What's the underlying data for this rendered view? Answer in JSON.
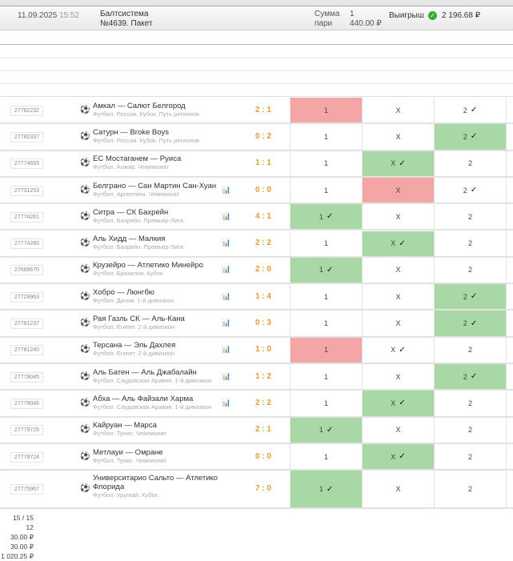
{
  "header": {
    "date": "11.09.2025",
    "time": "15:52",
    "title1": "Балтсистема",
    "title2": "№4639. Пакет",
    "sum_label1": "Сумма",
    "sum_label2": "пари",
    "sum_value1": "1",
    "sum_value2": "440.00 ₽",
    "win_label": "Выигрыш",
    "win_value": "2 196.68 ₽",
    "win_icon": "check-circle-icon"
  },
  "colors": {
    "win": "#a8d8a6",
    "lose": "#f4a6a6",
    "score": "#e0a030"
  },
  "rows": [
    {
      "id": "27782232",
      "teams": "Амкал — Салют Белгород",
      "league": "Футбол. Россия. Кубок. Путь регионов",
      "score": "2 : 1",
      "stats": false,
      "cells": [
        {
          "l": "1",
          "c": false,
          "s": "lose"
        },
        {
          "l": "X",
          "c": false,
          "s": ""
        },
        {
          "l": "2",
          "c": true,
          "s": ""
        }
      ]
    },
    {
      "id": "27782337",
      "teams": "Сатурн — Broke Boys",
      "league": "Футбол. Россия. Кубок. Путь регионов",
      "score": "0 : 2",
      "stats": false,
      "cells": [
        {
          "l": "1",
          "c": false,
          "s": ""
        },
        {
          "l": "X",
          "c": false,
          "s": ""
        },
        {
          "l": "2",
          "c": true,
          "s": "win"
        }
      ]
    },
    {
      "id": "27774655",
      "teams": "ЕС Мостаганем — Руиса",
      "league": "Футбол. Алжир. Чемпионат",
      "score": "1 : 1",
      "stats": false,
      "cells": [
        {
          "l": "1",
          "c": false,
          "s": ""
        },
        {
          "l": "X",
          "c": true,
          "s": "win"
        },
        {
          "l": "2",
          "c": false,
          "s": ""
        }
      ]
    },
    {
      "id": "27731253",
      "teams": "Белграно — Сан Мартин Сан-Хуан",
      "league": "Футбол. Аргентина. Чемпионат",
      "score": "0 : 0",
      "stats": true,
      "cells": [
        {
          "l": "1",
          "c": false,
          "s": ""
        },
        {
          "l": "X",
          "c": false,
          "s": "lose"
        },
        {
          "l": "2",
          "c": true,
          "s": ""
        }
      ]
    },
    {
      "id": "27774261",
      "teams": "Ситра — СК Бахрейн",
      "league": "Футбол. Бахрейн. Премьер-Лига",
      "score": "4 : 1",
      "stats": true,
      "cells": [
        {
          "l": "1",
          "c": true,
          "s": "win"
        },
        {
          "l": "X",
          "c": false,
          "s": ""
        },
        {
          "l": "2",
          "c": false,
          "s": ""
        }
      ]
    },
    {
      "id": "27774260",
      "teams": "Аль Хидд — Малкия",
      "league": "Футбол. Бахрейн. Премьер-Лига",
      "score": "2 : 2",
      "stats": true,
      "cells": [
        {
          "l": "1",
          "c": false,
          "s": ""
        },
        {
          "l": "X",
          "c": true,
          "s": "win"
        },
        {
          "l": "2",
          "c": false,
          "s": ""
        }
      ]
    },
    {
      "id": "27668670",
      "teams": "Крузейро — Атлетико Минейро",
      "league": "Футбол. Бразилия. Кубок",
      "score": "2 : 0",
      "stats": true,
      "cells": [
        {
          "l": "1",
          "c": true,
          "s": "win"
        },
        {
          "l": "X",
          "c": false,
          "s": ""
        },
        {
          "l": "2",
          "c": false,
          "s": ""
        }
      ]
    },
    {
      "id": "27729963",
      "teams": "Хобро — Люнгбю",
      "league": "Футбол. Дания. 1-й дивизион",
      "score": "1 : 4",
      "stats": true,
      "cells": [
        {
          "l": "1",
          "c": false,
          "s": ""
        },
        {
          "l": "X",
          "c": false,
          "s": ""
        },
        {
          "l": "2",
          "c": true,
          "s": "win"
        }
      ]
    },
    {
      "id": "27781237",
      "teams": "Рая Газль СК — Аль-Кана",
      "league": "Футбол. Египет. 2-й дивизион",
      "score": "0 : 3",
      "stats": true,
      "cells": [
        {
          "l": "1",
          "c": false,
          "s": ""
        },
        {
          "l": "X",
          "c": false,
          "s": ""
        },
        {
          "l": "2",
          "c": true,
          "s": "win"
        }
      ]
    },
    {
      "id": "27781240",
      "teams": "Терсана — Эль Дахлея",
      "league": "Футбол. Египет. 2-й дивизион",
      "score": "1 : 0",
      "stats": true,
      "cells": [
        {
          "l": "1",
          "c": false,
          "s": "lose"
        },
        {
          "l": "X",
          "c": true,
          "s": ""
        },
        {
          "l": "2",
          "c": false,
          "s": ""
        }
      ]
    },
    {
      "id": "27779045",
      "teams": "Аль Батен — Аль Джабалайн",
      "league": "Футбол. Саудовская Аравия. 1-й дивизион",
      "score": "1 : 2",
      "stats": true,
      "cells": [
        {
          "l": "1",
          "c": false,
          "s": ""
        },
        {
          "l": "X",
          "c": false,
          "s": ""
        },
        {
          "l": "2",
          "c": true,
          "s": "win"
        }
      ]
    },
    {
      "id": "27779046",
      "teams": "Абха — Аль Файзали Харма",
      "league": "Футбол. Саудовская Аравия. 1-й дивизион",
      "score": "2 : 2",
      "stats": true,
      "cells": [
        {
          "l": "1",
          "c": false,
          "s": ""
        },
        {
          "l": "X",
          "c": true,
          "s": "win"
        },
        {
          "l": "2",
          "c": false,
          "s": ""
        }
      ]
    },
    {
      "id": "27779725",
      "teams": "Кайруан — Марса",
      "league": "Футбол. Тунис. Чемпионат",
      "score": "2 : 1",
      "stats": false,
      "cells": [
        {
          "l": "1",
          "c": true,
          "s": "win"
        },
        {
          "l": "X",
          "c": false,
          "s": ""
        },
        {
          "l": "2",
          "c": false,
          "s": ""
        }
      ]
    },
    {
      "id": "27779724",
      "teams": "Метлауи — Омране",
      "league": "Футбол. Тунис. Чемпионат",
      "score": "0 : 0",
      "stats": false,
      "cells": [
        {
          "l": "1",
          "c": false,
          "s": ""
        },
        {
          "l": "X",
          "c": true,
          "s": "win"
        },
        {
          "l": "2",
          "c": false,
          "s": ""
        }
      ]
    },
    {
      "id": "27775967",
      "teams": "Университарио Сальто — Атлетико Флорида",
      "league": "Футбол. Уругвай. Кубок",
      "score": "7 : 0",
      "stats": false,
      "cells": [
        {
          "l": "1",
          "c": true,
          "s": "win"
        },
        {
          "l": "X",
          "c": false,
          "s": ""
        },
        {
          "l": "2",
          "c": false,
          "s": ""
        }
      ]
    }
  ],
  "footer": [
    "15 / 15",
    "12",
    "30.00 ₽",
    "30.00 ₽",
    "1 020.25 ₽"
  ]
}
